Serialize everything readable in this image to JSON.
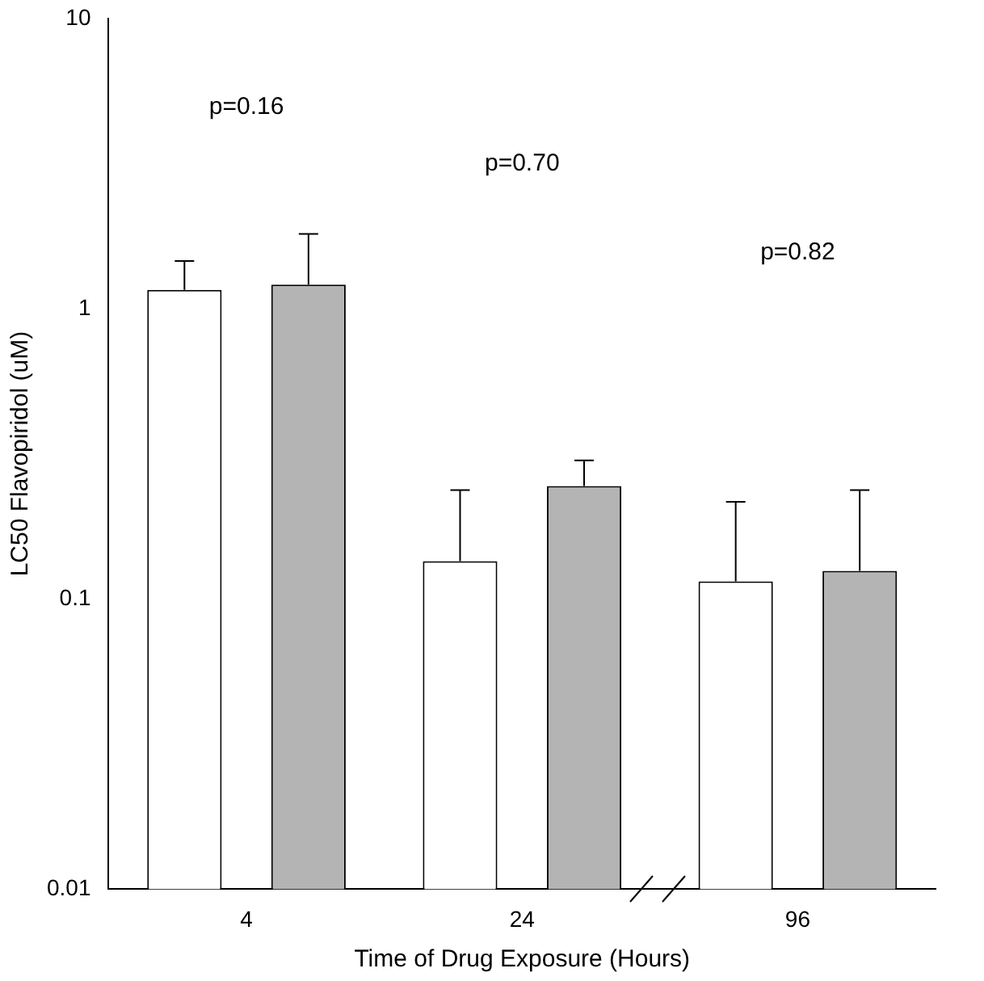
{
  "chart_data": {
    "type": "bar",
    "xlabel": "Time of Drug Exposure (Hours)",
    "ylabel": "LC50 Flavopiridol (uM)",
    "categories": [
      "4",
      "24",
      "96"
    ],
    "series": [
      {
        "color": "#ffffff",
        "values": [
          1.16,
          0.135,
          0.115
        ],
        "errors": [
          [
            1.16,
            1.46
          ],
          [
            0.135,
            0.237
          ],
          [
            0.115,
            0.216
          ]
        ]
      },
      {
        "color": "#b4b4b4",
        "values": [
          1.21,
          0.245,
          0.125
        ],
        "errors": [
          [
            1.21,
            1.81
          ],
          [
            0.245,
            0.3
          ],
          [
            0.125,
            0.237
          ]
        ]
      }
    ],
    "log": "y",
    "ylim": [
      0.01,
      10
    ],
    "yticks": [
      0.01,
      0.1,
      1,
      10
    ],
    "grid": false,
    "legend": false,
    "annotations": [
      "p=0.16",
      "p=0.70",
      "p=0.82"
    ]
  }
}
